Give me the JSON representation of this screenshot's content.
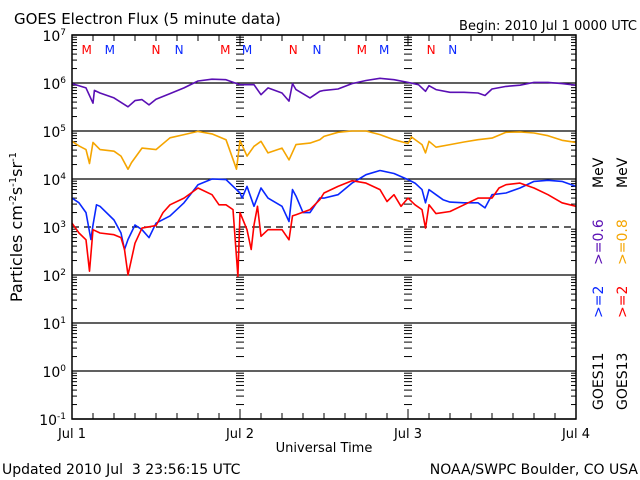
{
  "chart_data": {
    "type": "line",
    "title": "GOES Electron Flux (5 minute data)",
    "begin_label": "Begin: 2010 Jul 1 0000 UTC",
    "xlabel": "Universal Time",
    "ylabel": "Particles cm-2s-1sr-1",
    "ylabel_parts": {
      "base": "Particles cm",
      "e1": "-2",
      "s": "s",
      "e2": "-1",
      "sr": "sr",
      "e3": "-1"
    },
    "yscale": "log",
    "ylim": [
      0.1,
      10000000
    ],
    "y_ticks": [
      {
        "base": "10",
        "exp": "7",
        "value": 10000000
      },
      {
        "base": "10",
        "exp": "6",
        "value": 1000000
      },
      {
        "base": "10",
        "exp": "5",
        "value": 100000
      },
      {
        "base": "10",
        "exp": "4",
        "value": 10000
      },
      {
        "base": "10",
        "exp": "3",
        "value": 1000
      },
      {
        "base": "10",
        "exp": "2",
        "value": 100
      },
      {
        "base": "10",
        "exp": "1",
        "value": 10
      },
      {
        "base": "10",
        "exp": "0",
        "value": 1
      },
      {
        "base": "10",
        "exp": "-1",
        "value": 0.1
      }
    ],
    "threshold_value": 1000,
    "x_units": "hours since 2010 Jul 1 0000 UTC",
    "xlim": [
      0,
      72
    ],
    "x_ticks": [
      {
        "label": "Jul 1",
        "hour": 0
      },
      {
        "label": "Jul 2",
        "hour": 24
      },
      {
        "label": "Jul 3",
        "hour": 48
      },
      {
        "label": "Jul 4",
        "hour": 72
      }
    ],
    "grid": true,
    "series": [
      {
        "name": "GOES11 >=0.6 MeV",
        "legend_sat": "GOES11",
        "legend_energy": ">=0.6",
        "legend_unit": "MeV",
        "color": "#5a0fb4",
        "points": [
          [
            0,
            970000
          ],
          [
            2,
            790000
          ],
          [
            3,
            380000
          ],
          [
            3.2,
            700000
          ],
          [
            4,
            620000
          ],
          [
            6,
            490000
          ],
          [
            8,
            320000
          ],
          [
            9,
            430000
          ],
          [
            10,
            450000
          ],
          [
            11,
            350000
          ],
          [
            12,
            460000
          ],
          [
            14,
            600000
          ],
          [
            16,
            790000
          ],
          [
            18,
            1100000
          ],
          [
            20,
            1200000
          ],
          [
            22,
            1170000
          ],
          [
            24,
            920000
          ],
          [
            26,
            920000
          ],
          [
            27,
            570000
          ],
          [
            28,
            790000
          ],
          [
            30,
            620000
          ],
          [
            31,
            420000
          ],
          [
            31.5,
            970000
          ],
          [
            32,
            730000
          ],
          [
            34,
            490000
          ],
          [
            35.4,
            670000
          ],
          [
            36,
            700000
          ],
          [
            38,
            750000
          ],
          [
            40,
            970000
          ],
          [
            42,
            1130000
          ],
          [
            44,
            1250000
          ],
          [
            46,
            1170000
          ],
          [
            48,
            1030000
          ],
          [
            49.5,
            920000
          ],
          [
            50.5,
            670000
          ],
          [
            51,
            880000
          ],
          [
            52,
            730000
          ],
          [
            54,
            640000
          ],
          [
            56,
            640000
          ],
          [
            58,
            620000
          ],
          [
            59,
            550000
          ],
          [
            60,
            750000
          ],
          [
            62,
            850000
          ],
          [
            64,
            900000
          ],
          [
            66,
            1030000
          ],
          [
            68,
            1030000
          ],
          [
            70,
            970000
          ],
          [
            72,
            900000
          ]
        ]
      },
      {
        "name": "GOES13 >=0.8 MeV",
        "legend_sat": "GOES13",
        "legend_energy": ">=0.8",
        "legend_unit": "MeV",
        "color": "#f5a500",
        "points": [
          [
            0,
            61000
          ],
          [
            1,
            49000
          ],
          [
            2,
            41000
          ],
          [
            2.5,
            21000
          ],
          [
            3,
            58000
          ],
          [
            4,
            41000
          ],
          [
            6,
            38000
          ],
          [
            7,
            30000
          ],
          [
            8,
            16000
          ],
          [
            8.5,
            22000
          ],
          [
            10,
            44000
          ],
          [
            12,
            41000
          ],
          [
            14,
            72000
          ],
          [
            16,
            84000
          ],
          [
            18,
            98000
          ],
          [
            20,
            87000
          ],
          [
            22,
            66000
          ],
          [
            23.5,
            16000
          ],
          [
            24,
            63000
          ],
          [
            25,
            30000
          ],
          [
            26,
            48000
          ],
          [
            27,
            61000
          ],
          [
            28,
            35000
          ],
          [
            30,
            44000
          ],
          [
            31,
            25000
          ],
          [
            32,
            52000
          ],
          [
            34,
            56000
          ],
          [
            35.4,
            66000
          ],
          [
            36,
            77000
          ],
          [
            38,
            94000
          ],
          [
            40,
            100000
          ],
          [
            42,
            100000
          ],
          [
            44,
            84000
          ],
          [
            46,
            66000
          ],
          [
            48,
            55000
          ],
          [
            48.5,
            75000
          ],
          [
            50,
            52000
          ],
          [
            50.5,
            35000
          ],
          [
            51,
            61000
          ],
          [
            52,
            46000
          ],
          [
            54,
            52000
          ],
          [
            56,
            59000
          ],
          [
            58,
            66000
          ],
          [
            60,
            71000
          ],
          [
            62,
            94000
          ],
          [
            64,
            96000
          ],
          [
            66,
            91000
          ],
          [
            68,
            80000
          ],
          [
            70,
            64000
          ],
          [
            72,
            58000
          ]
        ]
      },
      {
        "name": "GOES11 >=2 MeV",
        "legend_sat": "GOES11",
        "legend_energy": ">=2",
        "legend_unit": "MeV",
        "color": "#0a28ff",
        "points": [
          [
            0,
            4000
          ],
          [
            1,
            3200
          ],
          [
            2,
            2000
          ],
          [
            2.7,
            550
          ],
          [
            3,
            1100
          ],
          [
            3.5,
            2900
          ],
          [
            4,
            2700
          ],
          [
            6,
            1400
          ],
          [
            7,
            750
          ],
          [
            7.5,
            340
          ],
          [
            8,
            550
          ],
          [
            9,
            1100
          ],
          [
            10,
            880
          ],
          [
            11,
            600
          ],
          [
            12,
            1200
          ],
          [
            14,
            1700
          ],
          [
            16,
            3200
          ],
          [
            18,
            7600
          ],
          [
            20,
            10000
          ],
          [
            22,
            9700
          ],
          [
            24,
            5100
          ],
          [
            24.3,
            4000
          ],
          [
            25,
            7000
          ],
          [
            26,
            2700
          ],
          [
            27,
            6500
          ],
          [
            28,
            4000
          ],
          [
            30,
            2700
          ],
          [
            31,
            1300
          ],
          [
            31.5,
            6000
          ],
          [
            32,
            4400
          ],
          [
            33,
            2000
          ],
          [
            34,
            2000
          ],
          [
            35.4,
            4000
          ],
          [
            36,
            4000
          ],
          [
            38,
            4700
          ],
          [
            40,
            8200
          ],
          [
            41,
            10000
          ],
          [
            42,
            12300
          ],
          [
            44,
            15000
          ],
          [
            46,
            13000
          ],
          [
            48,
            9700
          ],
          [
            49,
            8200
          ],
          [
            50,
            6000
          ],
          [
            50.5,
            3200
          ],
          [
            51,
            6000
          ],
          [
            52,
            4700
          ],
          [
            53,
            3700
          ],
          [
            54,
            3300
          ],
          [
            56,
            3200
          ],
          [
            58,
            3200
          ],
          [
            59,
            2500
          ],
          [
            60,
            4700
          ],
          [
            62,
            5100
          ],
          [
            64,
            6500
          ],
          [
            66,
            8900
          ],
          [
            68,
            9400
          ],
          [
            70,
            8900
          ],
          [
            72,
            7000
          ]
        ]
      },
      {
        "name": "GOES13 >=2 MeV",
        "legend_sat": "GOES13",
        "legend_energy": ">=2",
        "legend_unit": "MeV",
        "color": "#ff0000",
        "points": [
          [
            0,
            1200
          ],
          [
            1,
            750
          ],
          [
            2,
            540
          ],
          [
            2.5,
            120
          ],
          [
            3,
            880
          ],
          [
            4,
            750
          ],
          [
            6,
            690
          ],
          [
            7,
            600
          ],
          [
            7.5,
            340
          ],
          [
            8,
            100
          ],
          [
            9,
            460
          ],
          [
            10,
            950
          ],
          [
            12,
            1070
          ],
          [
            13,
            2000
          ],
          [
            14,
            2900
          ],
          [
            16,
            4000
          ],
          [
            18,
            6500
          ],
          [
            20,
            4700
          ],
          [
            21,
            2900
          ],
          [
            22,
            2900
          ],
          [
            23,
            2300
          ],
          [
            23.7,
            94
          ],
          [
            24,
            2000
          ],
          [
            25,
            880
          ],
          [
            25.6,
            340
          ],
          [
            26,
            1100
          ],
          [
            26.5,
            2700
          ],
          [
            27,
            640
          ],
          [
            28,
            880
          ],
          [
            30,
            880
          ],
          [
            31,
            540
          ],
          [
            31.5,
            1700
          ],
          [
            32,
            1800
          ],
          [
            34,
            2300
          ],
          [
            35.4,
            3700
          ],
          [
            36,
            5100
          ],
          [
            38,
            7000
          ],
          [
            40,
            9200
          ],
          [
            42,
            8200
          ],
          [
            44,
            6000
          ],
          [
            45,
            3400
          ],
          [
            46,
            4700
          ],
          [
            47,
            2700
          ],
          [
            48,
            4000
          ],
          [
            49,
            2900
          ],
          [
            50,
            2300
          ],
          [
            50.5,
            950
          ],
          [
            51,
            2900
          ],
          [
            52,
            1900
          ],
          [
            54,
            2100
          ],
          [
            56,
            2900
          ],
          [
            58,
            4000
          ],
          [
            60,
            4000
          ],
          [
            61,
            6500
          ],
          [
            62,
            7600
          ],
          [
            64,
            8200
          ],
          [
            66,
            6500
          ],
          [
            68,
            4700
          ],
          [
            70,
            3200
          ],
          [
            72,
            2700
          ]
        ]
      }
    ],
    "event_markers": [
      {
        "label": "M",
        "hour": 2.1,
        "color": "#ff0000"
      },
      {
        "label": "M",
        "hour": 5.4,
        "color": "#0a28ff"
      },
      {
        "label": "N",
        "hour": 12.0,
        "color": "#ff0000"
      },
      {
        "label": "N",
        "hour": 15.3,
        "color": "#0a28ff"
      },
      {
        "label": "M",
        "hour": 21.9,
        "color": "#ff0000"
      },
      {
        "label": "M",
        "hour": 25.0,
        "color": "#0a28ff"
      },
      {
        "label": "N",
        "hour": 31.6,
        "color": "#ff0000"
      },
      {
        "label": "N",
        "hour": 35.0,
        "color": "#0a28ff"
      },
      {
        "label": "M",
        "hour": 41.4,
        "color": "#ff0000"
      },
      {
        "label": "M",
        "hour": 44.6,
        "color": "#0a28ff"
      },
      {
        "label": "N",
        "hour": 51.3,
        "color": "#ff0000"
      },
      {
        "label": "N",
        "hour": 54.4,
        "color": "#0a28ff"
      }
    ]
  },
  "footer": {
    "updated": "Updated 2010 Jul  3 23:56:15 UTC",
    "credit": "NOAA/SWPC Boulder, CO USA"
  }
}
